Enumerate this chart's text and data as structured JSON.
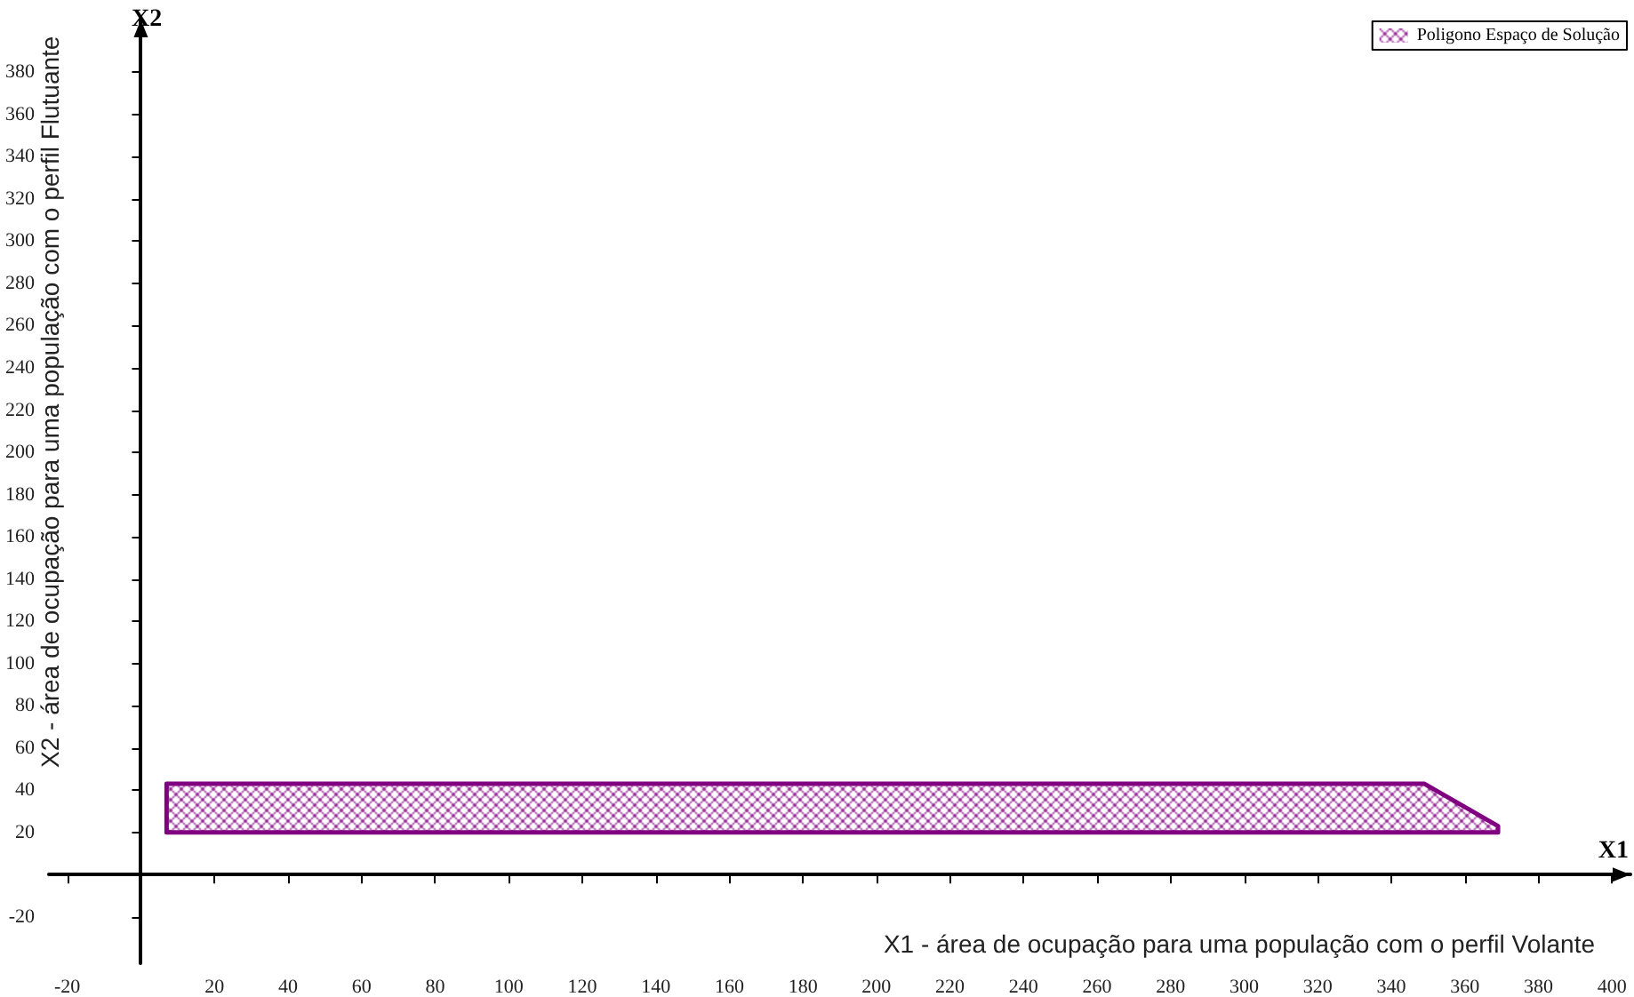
{
  "chart_data": {
    "type": "area",
    "xlabel": "X1 - área de ocupação para uma população com o perfil Volante",
    "ylabel": "X2 - área de ocupação para uma população com o perfil Flutuante",
    "annotations": [
      "X1",
      "X2"
    ],
    "series": [
      {
        "name": "Poligono Espaço de Solução",
        "color": "#800080",
        "x": [
          7,
          7,
          349,
          369,
          369,
          7
        ],
        "values": [
          20,
          43,
          43,
          23,
          20,
          20
        ]
      }
    ],
    "xlim": [
      -25,
      405
    ],
    "xticks": [
      -20,
      20,
      40,
      60,
      80,
      100,
      120,
      140,
      160,
      180,
      200,
      220,
      240,
      260,
      280,
      300,
      320,
      340,
      360,
      380,
      400
    ],
    "ylim": [
      -42,
      405
    ],
    "yticks": [
      -20,
      20,
      40,
      60,
      80,
      100,
      120,
      140,
      160,
      180,
      200,
      220,
      240,
      260,
      280,
      300,
      320,
      340,
      360,
      380
    ],
    "grid": false,
    "legend": "top right"
  }
}
